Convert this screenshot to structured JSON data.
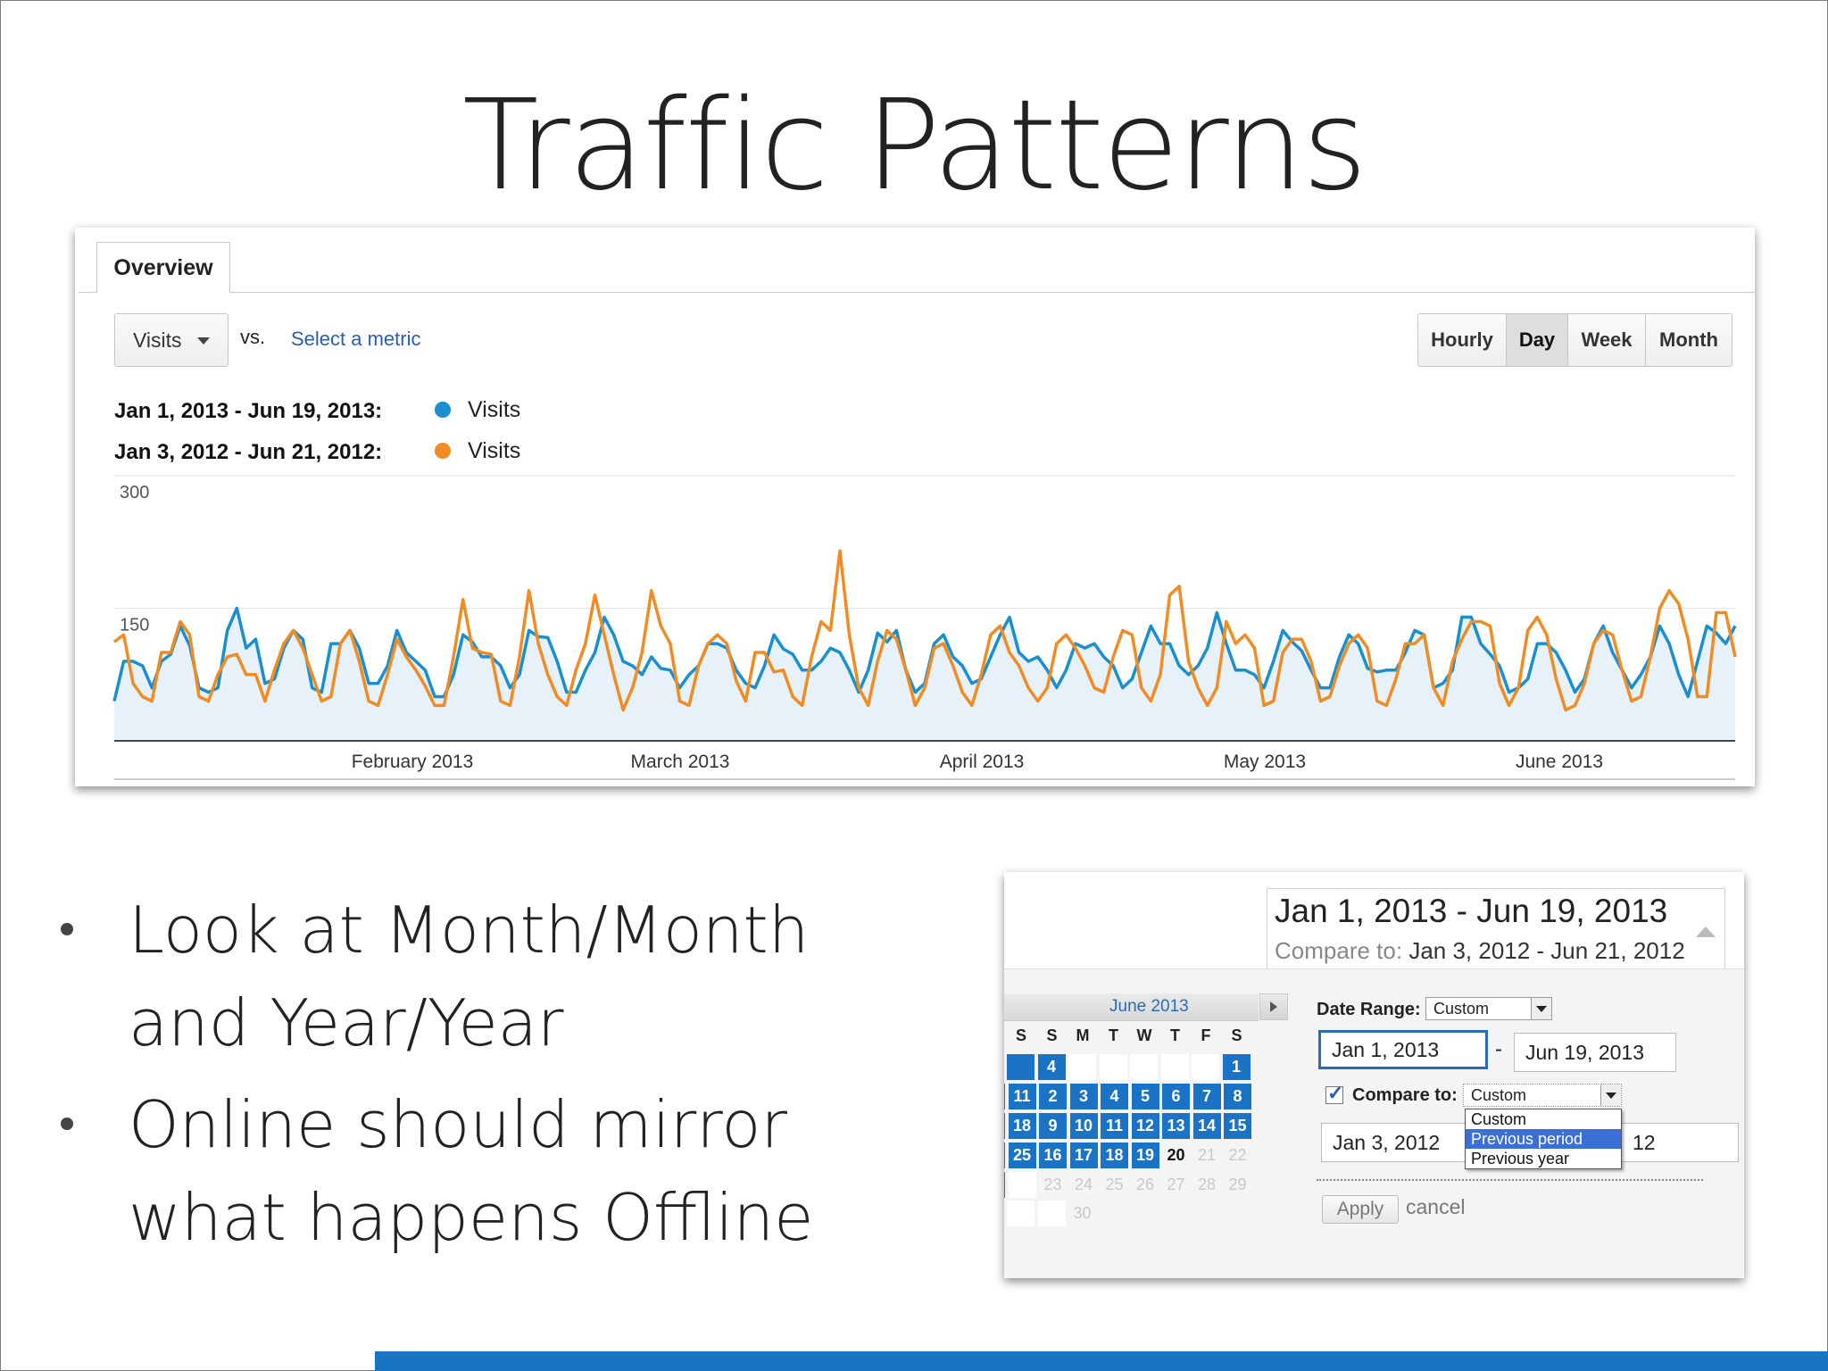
{
  "slide": {
    "title": "Traffic Patterns",
    "bullets": [
      {
        "lines": [
          "Look at Month/Month",
          "and Year/Year"
        ]
      },
      {
        "lines": [
          "Online should mirror",
          "what happens Offline"
        ]
      }
    ]
  },
  "analytics": {
    "tab": "Overview",
    "metric": "Visits",
    "vs_label": "vs.",
    "select_metric": "Select a metric",
    "granularity": [
      {
        "label": "Hourly",
        "active": false
      },
      {
        "label": "Day",
        "active": true
      },
      {
        "label": "Week",
        "active": false
      },
      {
        "label": "Month",
        "active": false
      }
    ],
    "legend": [
      {
        "range": "Jan 1, 2013 - Jun 19, 2013:",
        "series": "Visits",
        "color": "#1a8fd0"
      },
      {
        "range": "Jan 3, 2012 - Jun 21, 2012:",
        "series": "Visits",
        "color": "#f08c22"
      }
    ]
  },
  "chart_data": {
    "type": "line",
    "x_unit": "day",
    "x_range": [
      "2013-01-01",
      "2013-06-19"
    ],
    "ylim": [
      0,
      300
    ],
    "y_ticks": [
      "300",
      "150"
    ],
    "x_month_labels": [
      "February 2013",
      "March 2013",
      "April 2013",
      "May 2013",
      "June 2013"
    ],
    "grid": true,
    "series": [
      {
        "name": "Visits",
        "period": "Jan 1, 2013 - Jun 19, 2013",
        "color": "#1a8fd0",
        "fill": true,
        "values": [
          45,
          90,
          90,
          85,
          60,
          90,
          98,
          130,
          108,
          60,
          55,
          60,
          125,
          150,
          105,
          115,
          65,
          70,
          105,
          125,
          115,
          60,
          55,
          110,
          110,
          125,
          105,
          65,
          65,
          85,
          125,
          100,
          90,
          80,
          50,
          50,
          75,
          120,
          112,
          95,
          95,
          85,
          60,
          75,
          125,
          118,
          117,
          90,
          55,
          55,
          80,
          100,
          140,
          120,
          90,
          85,
          75,
          95,
          82,
          80,
          60,
          75,
          85,
          110,
          110,
          105,
          80,
          65,
          60,
          85,
          120,
          104,
          98,
          80,
          80,
          90,
          105,
          100,
          80,
          55,
          80,
          122,
          112,
          125,
          80,
          55,
          65,
          110,
          120,
          95,
          85,
          65,
          70,
          95,
          120,
          140,
          100,
          90,
          95,
          80,
          60,
          80,
          110,
          105,
          110,
          95,
          85,
          60,
          70,
          100,
          130,
          110,
          110,
          85,
          75,
          85,
          105,
          145,
          110,
          80,
          80,
          75,
          60,
          90,
          125,
          112,
          102,
          80,
          60,
          60,
          95,
          120,
          110,
          82,
          78,
          80,
          80,
          100,
          125,
          120,
          60,
          65,
          80,
          140,
          140,
          110,
          98,
          85,
          55,
          60,
          70,
          110,
          110,
          100,
          80,
          55,
          70,
          110,
          130,
          100,
          80,
          60,
          75,
          95,
          130,
          110,
          75,
          50,
          90,
          130,
          122,
          110,
          130
        ]
      },
      {
        "name": "Visits",
        "period": "Jan 3, 2012 - Jun 21, 2012",
        "color": "#f08c22",
        "fill": false,
        "values": [
          112,
          120,
          65,
          50,
          45,
          100,
          100,
          135,
          120,
          50,
          45,
          75,
          95,
          98,
          75,
          75,
          45,
          80,
          110,
          125,
          105,
          75,
          45,
          50,
          110,
          125,
          90,
          45,
          40,
          75,
          115,
          95,
          80,
          62,
          40,
          40,
          95,
          160,
          105,
          100,
          98,
          45,
          40,
          95,
          170,
          110,
          75,
          50,
          40,
          80,
          110,
          165,
          120,
          75,
          35,
          60,
          100,
          170,
          130,
          110,
          45,
          40,
          85,
          110,
          120,
          110,
          68,
          45,
          100,
          100,
          78,
          80,
          50,
          40,
          95,
          135,
          125,
          215,
          120,
          60,
          40,
          90,
          125,
          115,
          80,
          40,
          60,
          105,
          110,
          85,
          55,
          40,
          75,
          120,
          130,
          100,
          85,
          60,
          45,
          60,
          110,
          120,
          105,
          85,
          60,
          55,
          95,
          125,
          120,
          60,
          45,
          75,
          165,
          175,
          90,
          60,
          40,
          60,
          135,
          110,
          120,
          105,
          40,
          45,
          100,
          115,
          115,
          90,
          45,
          50,
          85,
          110,
          120,
          105,
          45,
          40,
          70,
          110,
          110,
          120,
          60,
          40,
          90,
          115,
          135,
          135,
          130,
          65,
          40,
          60,
          125,
          140,
          120,
          70,
          35,
          40,
          65,
          110,
          125,
          120,
          80,
          45,
          50,
          95,
          150,
          170,
          155,
          115,
          50,
          50,
          145,
          145,
          95
        ]
      }
    ]
  },
  "date_picker": {
    "range_main": "Jan 1, 2013 - Jun 19, 2013",
    "compare_label": "Compare to:",
    "compare_range": "Jan 3, 2012 - Jun 21, 2012",
    "calendar": {
      "month": "June 2013",
      "weekday_heads": [
        "S",
        "S",
        "M",
        "T",
        "W",
        "T",
        "F",
        "S"
      ],
      "rows": [
        [
          {
            "t": "",
            "c": "sel"
          },
          {
            "t": "4",
            "c": "sel"
          },
          {
            "t": "",
            "c": "empty"
          },
          {
            "t": "",
            "c": "empty"
          },
          {
            "t": "",
            "c": "empty"
          },
          {
            "t": "",
            "c": "empty"
          },
          {
            "t": "",
            "c": "empty"
          },
          {
            "t": "1",
            "c": "sel"
          }
        ],
        [
          {
            "t": "",
            "c": "sel"
          },
          {
            "t": "11",
            "c": "sel"
          },
          {
            "t": "2",
            "c": "sel"
          },
          {
            "t": "3",
            "c": "sel"
          },
          {
            "t": "4",
            "c": "sel"
          },
          {
            "t": "5",
            "c": "sel"
          },
          {
            "t": "6",
            "c": "sel"
          },
          {
            "t": "7",
            "c": "sel"
          },
          {
            "t": "8",
            "c": "sel"
          }
        ],
        [
          {
            "t": "",
            "c": "sel"
          },
          {
            "t": "18",
            "c": "sel"
          },
          {
            "t": "9",
            "c": "sel"
          },
          {
            "t": "10",
            "c": "sel"
          },
          {
            "t": "11",
            "c": "sel"
          },
          {
            "t": "12",
            "c": "sel"
          },
          {
            "t": "13",
            "c": "sel"
          },
          {
            "t": "14",
            "c": "sel"
          },
          {
            "t": "15",
            "c": "sel"
          }
        ],
        [
          {
            "t": "",
            "c": "sel"
          },
          {
            "t": "25",
            "c": "sel"
          },
          {
            "t": "16",
            "c": "sel"
          },
          {
            "t": "17",
            "c": "sel"
          },
          {
            "t": "18",
            "c": "sel"
          },
          {
            "t": "19",
            "c": "sel"
          },
          {
            "t": "20",
            "c": "today"
          },
          {
            "t": "21",
            "c": "future"
          },
          {
            "t": "22",
            "c": "future"
          }
        ],
        [
          {
            "t": "",
            "c": "sel"
          },
          {
            "t": "",
            "c": "empty"
          },
          {
            "t": "23",
            "c": "future"
          },
          {
            "t": "24",
            "c": "future"
          },
          {
            "t": "25",
            "c": "future"
          },
          {
            "t": "26",
            "c": "future"
          },
          {
            "t": "27",
            "c": "future"
          },
          {
            "t": "28",
            "c": "future"
          },
          {
            "t": "29",
            "c": "future"
          }
        ],
        [
          {
            "t": "",
            "c": "empty"
          },
          {
            "t": "",
            "c": "empty"
          },
          {
            "t": "30",
            "c": "future"
          }
        ]
      ]
    },
    "date_range_label": "Date Range:",
    "date_range_value": "Custom",
    "start_date": "Jan 1, 2013",
    "dash": "-",
    "end_date": "Jun 19, 2013",
    "compare_checkbox_label": "Compare to:",
    "compare_value": "Custom",
    "compare_start": "Jan 3, 2012",
    "compare_end_partial": "12",
    "dropdown_options": [
      {
        "label": "Custom",
        "highlighted": false
      },
      {
        "label": "Previous period",
        "highlighted": true
      },
      {
        "label": "Previous year",
        "highlighted": false
      }
    ],
    "apply_label": "Apply",
    "cancel_label": "cancel"
  }
}
